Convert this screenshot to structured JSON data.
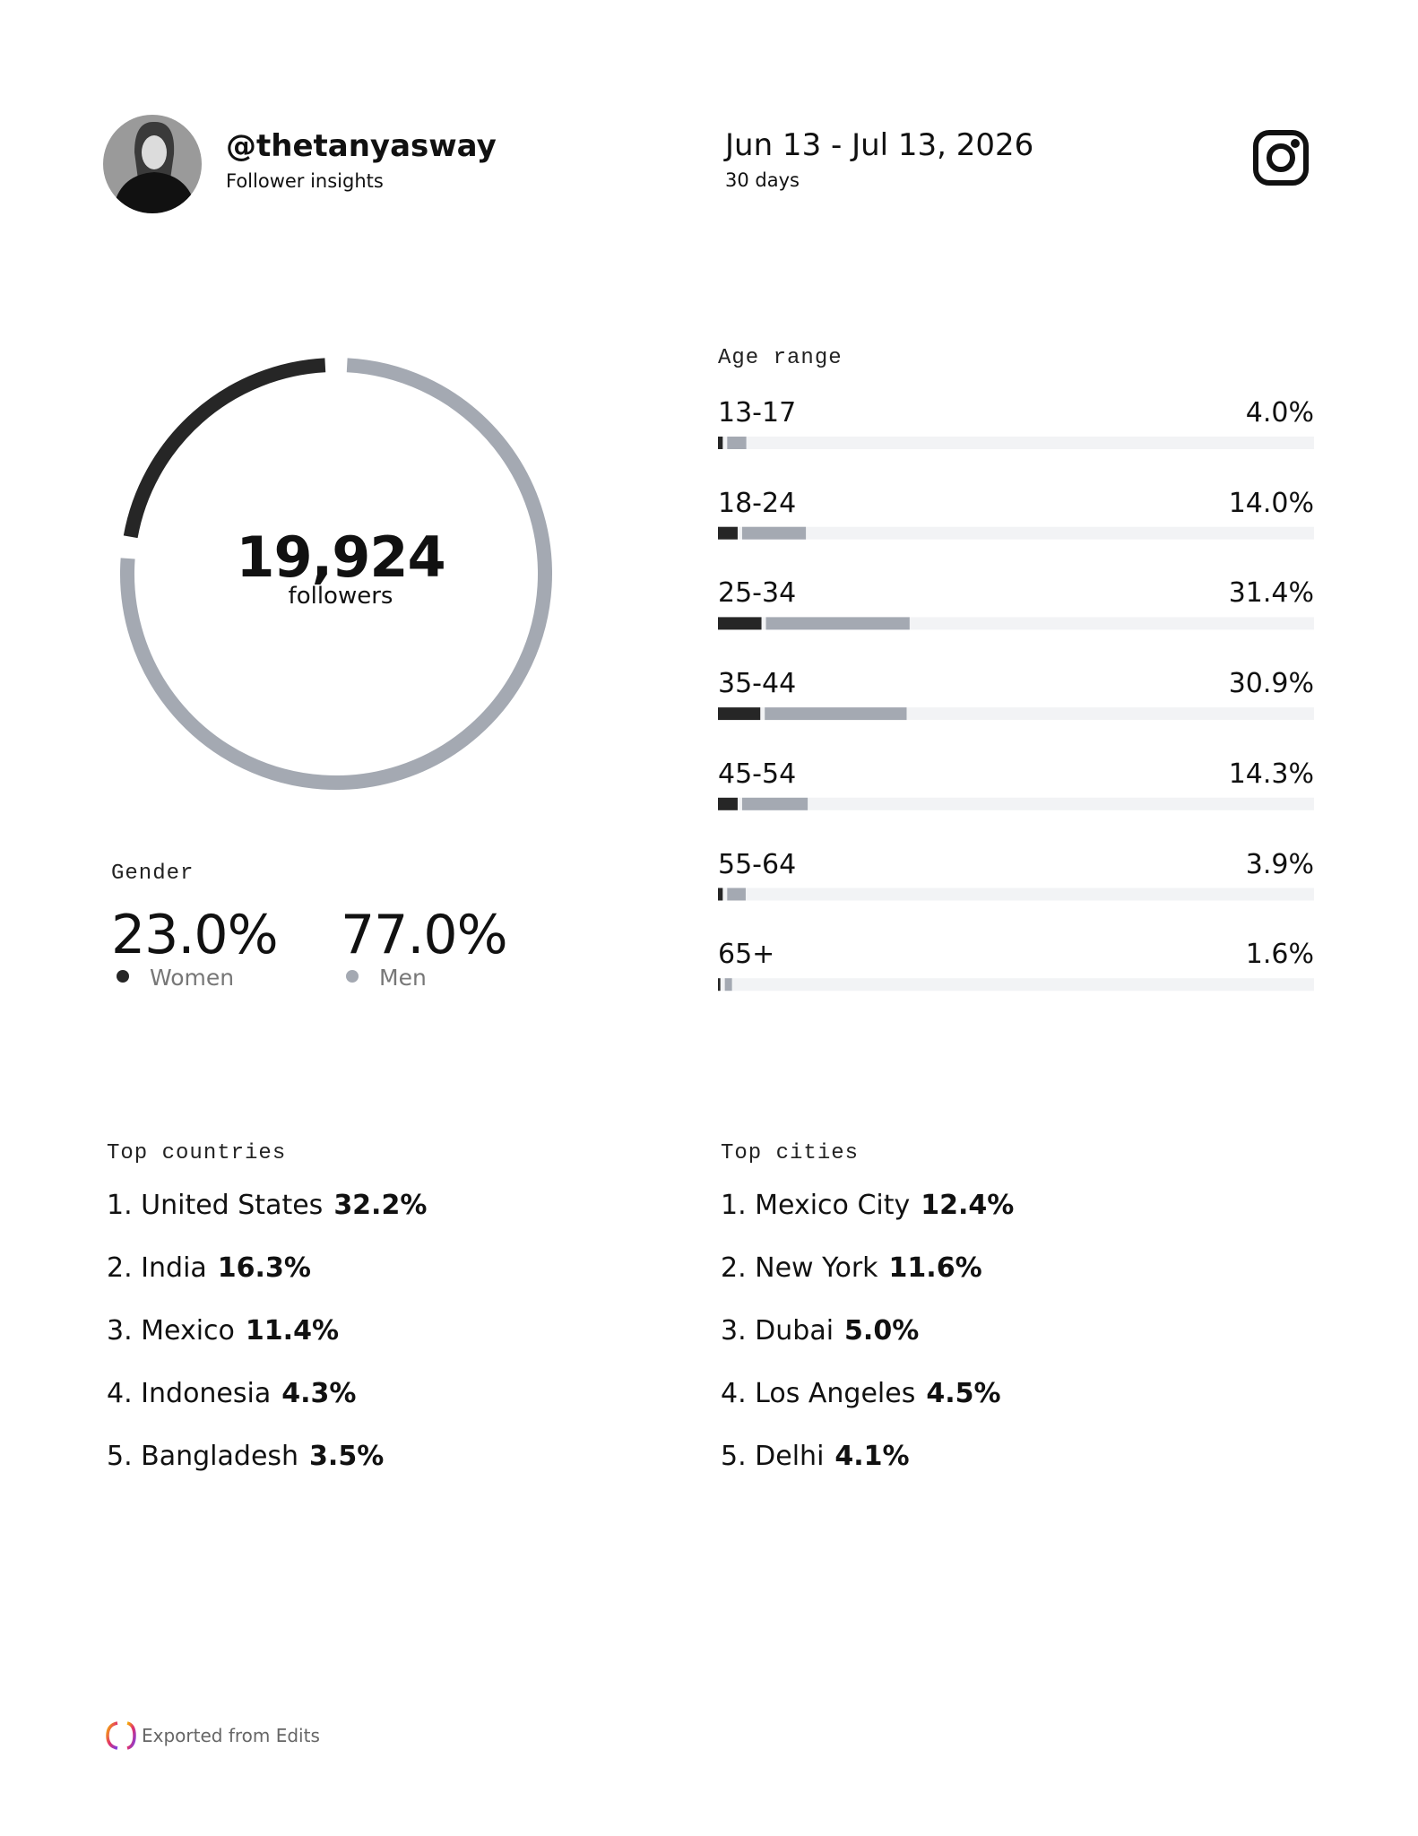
{
  "header": {
    "handle": "@thetanyasway",
    "subtitle": "Follower insights",
    "date_range": "Jun 13 - Jul 13, 2026",
    "period": "30 days"
  },
  "followers": {
    "count": "19,924",
    "label": "followers"
  },
  "gender": {
    "title": "Gender",
    "items": [
      {
        "name": "Women",
        "value": 23.0,
        "value_label": "23.0%",
        "color": "#262626"
      },
      {
        "name": "Men",
        "value": 77.0,
        "value_label": "77.0%",
        "color": "#a4a9b2"
      }
    ]
  },
  "age_range": {
    "title": "Age range",
    "women_color": "#262626",
    "men_color": "#a4a9b2",
    "rows": [
      {
        "label": "13-17",
        "value": 4.0,
        "value_label": "4.0%",
        "women": 0.8,
        "men": 3.2
      },
      {
        "label": "18-24",
        "value": 14.0,
        "value_label": "14.0%",
        "women": 3.3,
        "men": 10.7
      },
      {
        "label": "25-34",
        "value": 31.4,
        "value_label": "31.4%",
        "women": 7.3,
        "men": 24.1
      },
      {
        "label": "35-44",
        "value": 30.9,
        "value_label": "30.9%",
        "women": 7.1,
        "men": 23.8
      },
      {
        "label": "45-54",
        "value": 14.3,
        "value_label": "14.3%",
        "women": 3.3,
        "men": 11.0
      },
      {
        "label": "55-64",
        "value": 3.9,
        "value_label": "3.9%",
        "women": 0.8,
        "men": 3.1
      },
      {
        "label": "65+",
        "value": 1.6,
        "value_label": "1.6%",
        "women": 0.4,
        "men": 1.2
      }
    ]
  },
  "top_countries": {
    "title": "Top countries",
    "items": [
      {
        "name": "1. United States",
        "share": "32.2%"
      },
      {
        "name": "2. India",
        "share": "16.3%"
      },
      {
        "name": "3. Mexico",
        "share": "11.4%"
      },
      {
        "name": "4. Indonesia",
        "share": "4.3%"
      },
      {
        "name": "5. Bangladesh",
        "share": "3.5%"
      }
    ]
  },
  "top_cities": {
    "title": "Top cities",
    "items": [
      {
        "name": "1. Mexico City",
        "share": "12.4%"
      },
      {
        "name": "2. New York",
        "share": "11.6%"
      },
      {
        "name": "3. Dubai",
        "share": "5.0%"
      },
      {
        "name": "4. Los Angeles",
        "share": "4.5%"
      },
      {
        "name": "5. Delhi",
        "share": "4.1%"
      }
    ]
  },
  "footer": {
    "text": "Exported from Edits"
  }
}
